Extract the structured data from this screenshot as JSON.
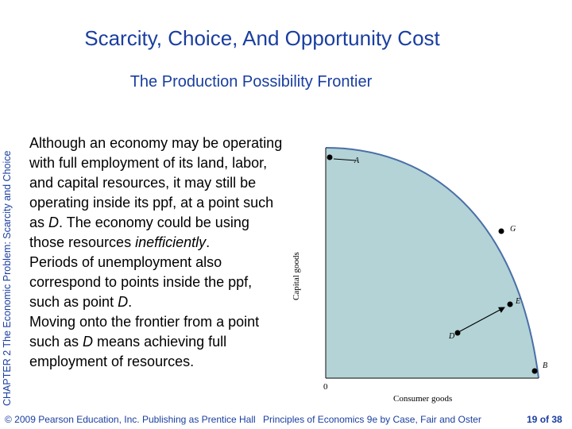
{
  "title": "Scarcity, Choice, And Opportunity Cost",
  "subtitle": "The Production Possibility Frontier",
  "side_label": "CHAPTER 2  The Economic Problem:  Scarcity and Choice",
  "body": {
    "para1_a": "Although an economy may be operating with full employment of its land, labor, and capital resources, it may still be operating inside its ppf, at a point such as ",
    "para1_b": "D",
    "para1_c": ". The economy could be using those resources ",
    "para1_d": "inefficiently",
    "para1_e": ".",
    "para2_a": "Periods of unemployment also correspond to points inside the ppf, such as point ",
    "para2_b": "D",
    "para2_c": ".",
    "para3_a": "Moving onto the frontier from a point such as ",
    "para3_b": "D",
    "para3_c": " means achieving full employment of resources."
  },
  "diagram": {
    "y_axis_label": "Capital goods",
    "x_axis_label": "Consumer goods",
    "origin_label": "0",
    "points": {
      "A": "A",
      "B": "B",
      "D": "D",
      "E": "E",
      "G": "G"
    },
    "colors": {
      "fill": "#b3d3d6",
      "curve": "#4a6fa8",
      "axis": "#333333"
    }
  },
  "footer": {
    "copyright": "© 2009 Pearson Education, Inc. Publishing as Prentice Hall",
    "book": "Principles of Economics 9e by Case, Fair and Oster"
  },
  "page": {
    "current": "19",
    "of": "of",
    "total": "38"
  }
}
